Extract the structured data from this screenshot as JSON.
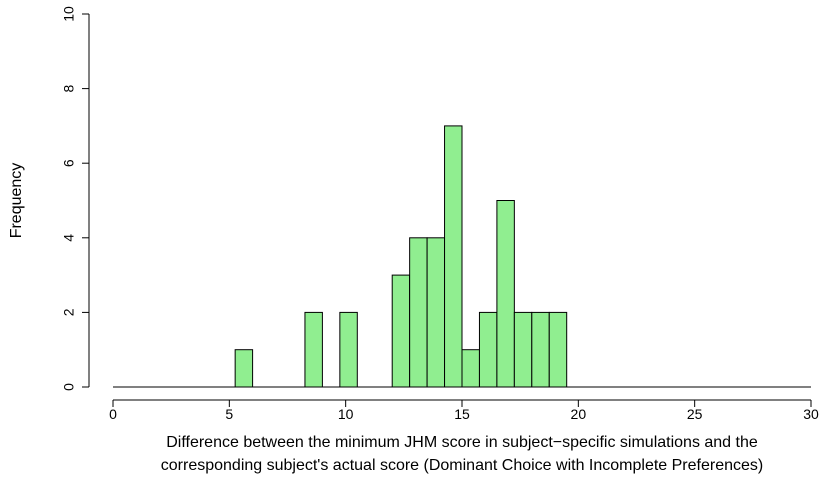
{
  "chart_data": {
    "type": "histogram",
    "bar_color": "#90EE90",
    "bin_width": 0.75,
    "bins": [
      {
        "x0": 5.25,
        "x1": 6.0,
        "value": 1
      },
      {
        "x0": 8.25,
        "x1": 9.0,
        "value": 2
      },
      {
        "x0": 9.75,
        "x1": 10.5,
        "value": 2
      },
      {
        "x0": 12.0,
        "x1": 12.75,
        "value": 3
      },
      {
        "x0": 12.75,
        "x1": 13.5,
        "value": 4
      },
      {
        "x0": 13.5,
        "x1": 14.25,
        "value": 4
      },
      {
        "x0": 14.25,
        "x1": 15.0,
        "value": 7
      },
      {
        "x0": 15.0,
        "x1": 15.75,
        "value": 1
      },
      {
        "x0": 15.75,
        "x1": 16.5,
        "value": 2
      },
      {
        "x0": 16.5,
        "x1": 17.25,
        "value": 5
      },
      {
        "x0": 17.25,
        "x1": 18.0,
        "value": 2
      },
      {
        "x0": 18.0,
        "x1": 18.75,
        "value": 2
      },
      {
        "x0": 18.75,
        "x1": 19.5,
        "value": 2
      }
    ],
    "xlim": [
      0,
      30
    ],
    "ylim": [
      0,
      10
    ],
    "x_ticks": [
      0,
      5,
      10,
      15,
      20,
      25,
      30
    ],
    "y_ticks": [
      0,
      2,
      4,
      6,
      8,
      10
    ],
    "xlabel_line1": "Difference between the minimum JHM score in subject−specific simulations and the",
    "xlabel_line2": "corresponding subject's actual score (Dominant Choice with Incomplete Preferences)",
    "ylabel": "Frequency",
    "grid": false
  }
}
